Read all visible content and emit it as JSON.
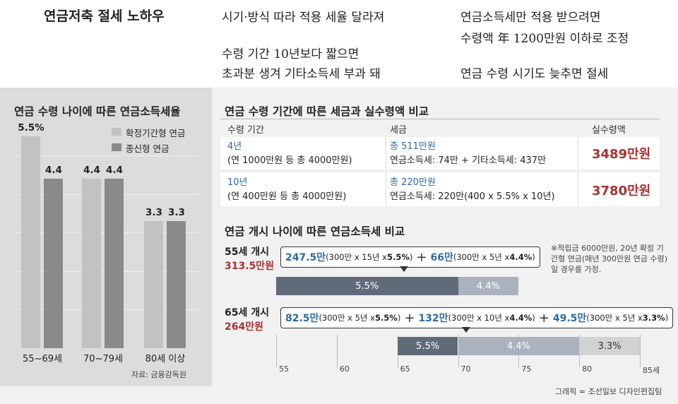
{
  "header": {
    "title": "연금저축 절세 노하우",
    "tips": [
      "시기·방식 따라 적용 세율 달라져",
      "수령 기간 10년보다 짧으면",
      "초과분 생겨 기타소득세 부과 돼",
      "연금소득세만 적용 받으려면",
      "수령액 年 1200만원 이하로 조정",
      "연금 수령 시기도 늦추면 절세"
    ]
  },
  "left_panel": {
    "title": "연금 수령 나이에 따른 연금소득세율",
    "source": "자료: 금융감독원"
  },
  "chart_data": [
    {
      "type": "bar",
      "title": "연금 수령 나이에 따른 연금소득세율",
      "categories": [
        "55~69세",
        "70~79세",
        "80세 이상"
      ],
      "series": [
        {
          "name": "확정기간형 연금",
          "values": [
            5.5,
            4.4,
            3.3
          ],
          "labels": [
            "5.5%",
            "4.4",
            "3.3"
          ],
          "color": "#c2c2c2"
        },
        {
          "name": "종신형 연금",
          "values": [
            4.4,
            4.4,
            3.3
          ],
          "labels": [
            "4.4",
            "4.4",
            "3.3"
          ],
          "color": "#8a8a8a"
        }
      ],
      "ylim": [
        0,
        6
      ],
      "grid": true,
      "legend": "top-right"
    },
    {
      "type": "bar",
      "title": "연금 개시 나이에 따른 연금소득세 비교",
      "orientation": "horizontal-stacked",
      "x_ticks": [
        "55",
        "60",
        "65",
        "70",
        "75",
        "80",
        "85세"
      ],
      "xlim": [
        55,
        85
      ],
      "rows": [
        {
          "label": "55세 개시",
          "total": "313.5만원",
          "segments": [
            {
              "start": 55,
              "end": 70,
              "label": "5.5%",
              "color": "#5f6b79"
            },
            {
              "start": 70,
              "end": 75,
              "label": "4.4%",
              "color": "#aab3bd"
            }
          ],
          "callout": [
            {
              "amount": "247.5만",
              "detail": "(300만 x 15년 x ",
              "rate": "5.5%",
              "close": ")"
            },
            {
              "sep": "+"
            },
            {
              "amount": "66만",
              "detail": "(300만 x 5년 x ",
              "rate": "4.4%",
              "close": ")"
            }
          ]
        },
        {
          "label": "65세 개시",
          "total": "264만원",
          "segments": [
            {
              "start": 65,
              "end": 70,
              "label": "5.5%",
              "color": "#5f6b79"
            },
            {
              "start": 70,
              "end": 80,
              "label": "4.4%",
              "color": "#aab3bd"
            },
            {
              "start": 80,
              "end": 85,
              "label": "3.3%",
              "color": "#d2d2d2"
            }
          ],
          "callout": [
            {
              "amount": "82.5만",
              "detail": "(300만 x 5년 x ",
              "rate": "5.5%",
              "close": ")"
            },
            {
              "sep": "+"
            },
            {
              "amount": "132만",
              "detail": "(300만 x 10년 x ",
              "rate": "4.4%",
              "close": ")"
            },
            {
              "sep": "+"
            },
            {
              "amount": "49.5만",
              "detail": "(300만 x 5년 x ",
              "rate": "3.3%",
              "close": ")"
            }
          ]
        }
      ]
    }
  ],
  "table": {
    "title": "연금 수령 기간에 따른 세금과 실수령액 비교",
    "headers": [
      "수령 기간",
      "세금",
      "실수령액"
    ],
    "rows": [
      {
        "period": "4년",
        "period_detail": "(연 1000만원 등 총 4000만원)",
        "tax_total": "총 511만원",
        "tax_detail": "연금소득세: 74만 + 기타소득세: 437만",
        "net": "3489만원"
      },
      {
        "period": "10년",
        "period_detail": "(연 400만원 등 총 4000만원)",
        "tax_total": "총 220만원",
        "tax_detail": "연금소득세: 220만(400 x 5.5% x 10년)",
        "net": "3780만원"
      }
    ]
  },
  "lower_right": {
    "title": "연금 개시 나이에 따른 연금소득세 비교",
    "note": "※적립금 6000만원, 20년 확정 기간형 연금(매년 300만원 연금 수령)일 경우를 가정."
  },
  "credit": "그래픽 = 조선일보 디자인편집팀"
}
